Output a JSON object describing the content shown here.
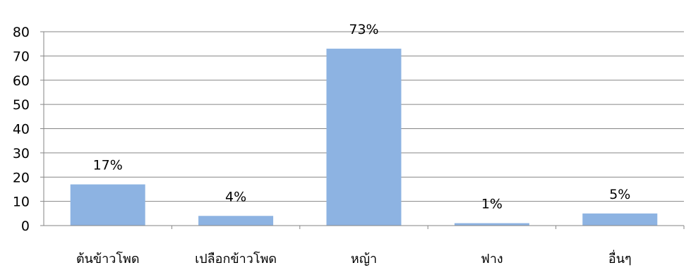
{
  "chart_data": {
    "type": "bar",
    "categories": [
      "ต้นข้าวโพด",
      "เปลือกข้าวโพด",
      "หญ้า",
      "ฟาง",
      "อื่นๆ"
    ],
    "values": [
      17,
      4,
      73,
      1,
      5
    ],
    "data_labels": [
      "17%",
      "4%",
      "73%",
      "1%",
      "5%"
    ],
    "ylim": [
      0,
      80
    ],
    "yticks": [
      0,
      10,
      20,
      30,
      40,
      50,
      60,
      70,
      80
    ],
    "ytick_labels": [
      "0",
      "10",
      "20",
      "30",
      "40",
      "50",
      "60",
      "70",
      "80"
    ],
    "grid": true,
    "legend": "none",
    "colors": {
      "bar": "#8db3e2",
      "grid": "#868686",
      "axis": "#868686",
      "text": "#000000"
    }
  }
}
